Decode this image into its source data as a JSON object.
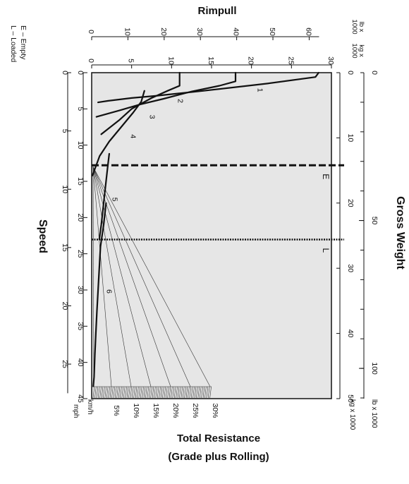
{
  "chart_data": {
    "type": "line",
    "title": "Rimpull",
    "orientation": "rotated-90",
    "rimpull_axis": {
      "label": "Rimpull",
      "kg_unit": "kg x\n1000",
      "lb_unit": "lb x\n1000",
      "kg_ticks": [
        0,
        5,
        10,
        15,
        20,
        25,
        30
      ],
      "lb_ticks": [
        0,
        10,
        20,
        30,
        40,
        50,
        60
      ],
      "range_kg": [
        0,
        30
      ]
    },
    "speed_axis": {
      "label": "Speed",
      "kmh_unit": "km/h",
      "mph_unit": "mph",
      "kmh_ticks": [
        0,
        5,
        10,
        15,
        20,
        25,
        30,
        35,
        40,
        45
      ],
      "mph_ticks": [
        0,
        5,
        10,
        15,
        20,
        25
      ],
      "range_kmh": [
        0,
        45
      ]
    },
    "gross_weight_axis": {
      "label": "Gross Weight",
      "kg_unit": "kg x 1000",
      "lb_unit": "lb x 1000",
      "kg_ticks": [
        0,
        10,
        20,
        30,
        40,
        50
      ],
      "lb_ticks": [
        50,
        100
      ],
      "range_kg": [
        0,
        50
      ]
    },
    "resistance": {
      "label_line1": "Total Resistance",
      "label_line2": "(Grade plus Rolling)",
      "percents": [
        "5%",
        "10%",
        "15%",
        "20%",
        "25%",
        "30%"
      ]
    },
    "legend": {
      "empty": "E – Empty",
      "loaded": "L – Loaded"
    },
    "weight_lines": [
      {
        "label": "E",
        "gross_weight_kg": 14.2,
        "style": "dashed"
      },
      {
        "label": "L",
        "gross_weight_kg": 25.6,
        "style": "dotted"
      }
    ],
    "gear_curves": [
      {
        "name": "1",
        "points": [
          [
            0,
            28.4
          ],
          [
            0.6,
            28
          ],
          [
            1.5,
            22
          ],
          [
            2.5,
            14
          ],
          [
            3.2,
            8
          ],
          [
            3.5,
            5
          ],
          [
            3.9,
            2
          ],
          [
            4.1,
            0.8
          ]
        ]
      },
      {
        "name": "2",
        "points": [
          [
            0,
            18
          ],
          [
            1.2,
            18
          ],
          [
            1.8,
            16
          ],
          [
            2.6,
            12.5
          ],
          [
            3.6,
            9
          ],
          [
            4.4,
            6
          ],
          [
            5.2,
            3.5
          ],
          [
            6.1,
            0.6
          ]
        ]
      },
      {
        "name": "3",
        "points": [
          [
            0,
            11
          ],
          [
            1.8,
            11
          ],
          [
            2.5,
            9.5
          ],
          [
            3.5,
            7.5
          ],
          [
            5,
            5
          ],
          [
            6.5,
            3.5
          ],
          [
            8.5,
            1.2
          ]
        ]
      },
      {
        "name": "4",
        "points": [
          [
            2.5,
            6.6
          ],
          [
            4,
            6.2
          ],
          [
            5.5,
            5.2
          ],
          [
            7.5,
            3.7
          ],
          [
            9.5,
            2.2
          ],
          [
            11.5,
            1
          ],
          [
            14.2,
            0.1
          ]
        ]
      },
      {
        "name": "5",
        "points": [
          [
            11.2,
            2.2
          ],
          [
            13,
            2
          ],
          [
            15,
            1.8
          ],
          [
            17,
            1.6
          ],
          [
            19,
            1.4
          ],
          [
            21,
            1.2
          ],
          [
            23,
            0.95
          ]
        ]
      },
      {
        "name": "6",
        "points": [
          [
            18,
            1.8
          ],
          [
            21,
            1.5
          ],
          [
            24,
            1.1
          ],
          [
            27,
            0.95
          ],
          [
            30,
            0.8
          ],
          [
            33,
            0.65
          ],
          [
            36,
            0.52
          ],
          [
            39,
            0.4
          ],
          [
            42,
            0.3
          ],
          [
            43.3,
            0.2
          ]
        ]
      }
    ],
    "curve_labels": [
      {
        "name": "1",
        "at": [
          2.4,
          20.8
        ]
      },
      {
        "name": "2",
        "at": [
          3.9,
          10.8
        ]
      },
      {
        "name": "3",
        "at": [
          6.1,
          7.3
        ]
      },
      {
        "name": "4",
        "at": [
          8.8,
          4.9
        ]
      },
      {
        "name": "5",
        "at": [
          17.5,
          2.6
        ]
      },
      {
        "name": "6",
        "at": [
          30.2,
          1.9
        ]
      }
    ]
  }
}
